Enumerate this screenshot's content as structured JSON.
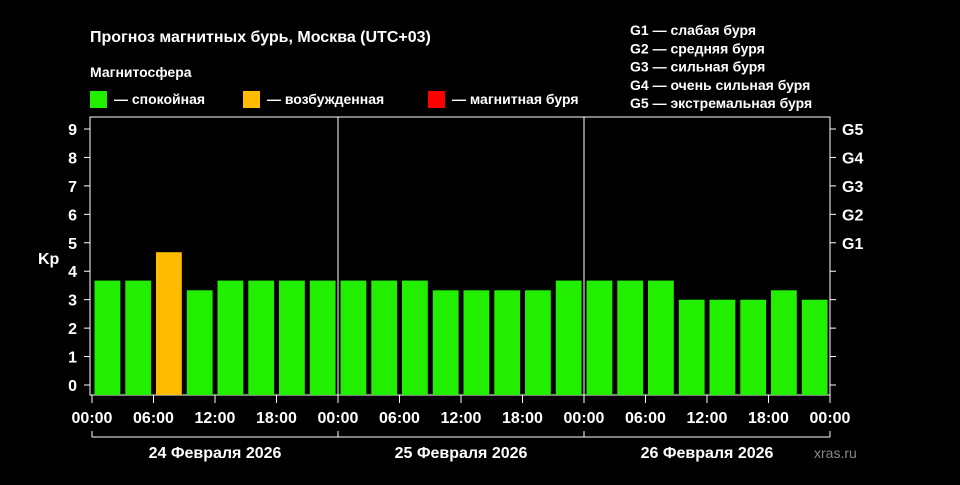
{
  "chart_data": {
    "type": "bar",
    "title": "Прогноз магнитных бурь, Москва (UTC+03)",
    "legend_title": "Магнитосфера",
    "legend": [
      {
        "label": "— спокойная",
        "color": "#22ee00"
      },
      {
        "label": "— возбужденная",
        "color": "#ffbb00"
      },
      {
        "label": "— магнитная буря",
        "color": "#ff0000"
      }
    ],
    "g_scale_legend": [
      "G1 — слабая буря",
      "G2 — средняя буря",
      "G3 — сильная буря",
      "G4 — очень сильная буря",
      "G5 — экстремальная буря"
    ],
    "ylabel": "Kp",
    "ylim": [
      0,
      9
    ],
    "yticks": [
      "0",
      "1",
      "2",
      "3",
      "4",
      "5",
      "6",
      "7",
      "8",
      "9"
    ],
    "right_ticks": [
      {
        "label": "G1",
        "y": 5
      },
      {
        "label": "G2",
        "y": 6
      },
      {
        "label": "G3",
        "y": 7
      },
      {
        "label": "G4",
        "y": 8
      },
      {
        "label": "G5",
        "y": 9
      }
    ],
    "xticks": [
      "00:00",
      "06:00",
      "12:00",
      "18:00",
      "00:00",
      "06:00",
      "12:00",
      "18:00",
      "00:00",
      "06:00",
      "12:00",
      "18:00",
      "00:00"
    ],
    "days": [
      "24 Февраля 2026",
      "25 Февраля 2026",
      "26 Февраля 2026"
    ],
    "values": [
      3.67,
      3.67,
      4.67,
      3.33,
      3.67,
      3.67,
      3.67,
      3.67,
      3.67,
      3.67,
      3.67,
      3.33,
      3.33,
      3.33,
      3.33,
      3.67,
      3.67,
      3.67,
      3.67,
      3.0,
      3.0,
      3.0,
      3.33,
      3.0
    ],
    "status": [
      "calm",
      "calm",
      "excited",
      "calm",
      "calm",
      "calm",
      "calm",
      "calm",
      "calm",
      "calm",
      "calm",
      "calm",
      "calm",
      "calm",
      "calm",
      "calm",
      "calm",
      "calm",
      "calm",
      "calm",
      "calm",
      "calm",
      "calm",
      "calm"
    ],
    "status_colors": {
      "calm": "#22ee00",
      "excited": "#ffbb00",
      "storm": "#ff0000"
    },
    "watermark": "xras.ru"
  }
}
